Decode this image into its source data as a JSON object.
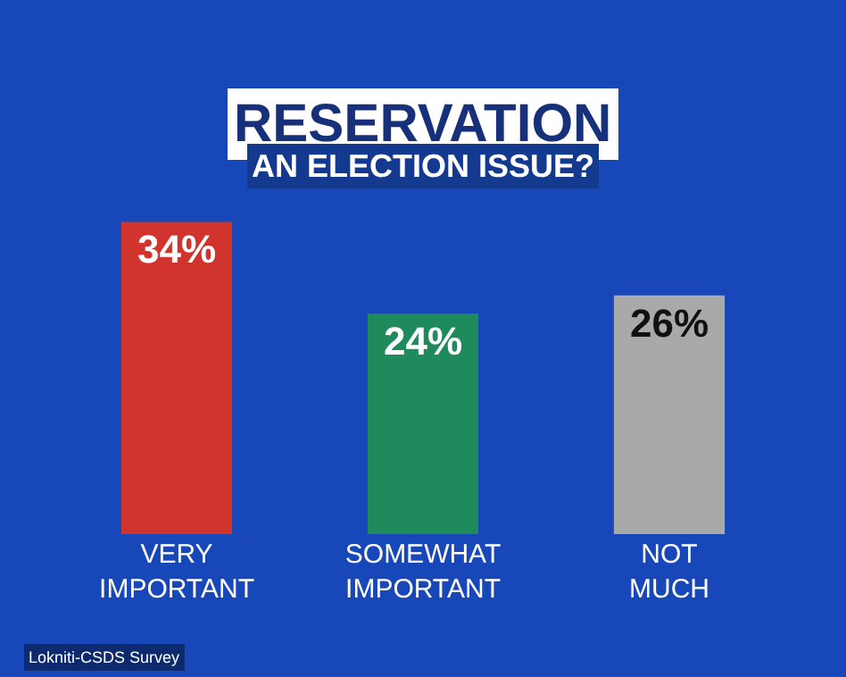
{
  "chart_data": {
    "type": "bar",
    "title": "RESERVATION",
    "subtitle": "AN ELECTION ISSUE?",
    "categories": [
      "VERY IMPORTANT",
      "SOMEWHAT IMPORTANT",
      "NOT MUCH"
    ],
    "values": [
      34,
      24,
      26
    ],
    "colors": [
      "#d0342c",
      "#1f8a5c",
      "#a9a9a9"
    ],
    "value_labels": [
      "34%",
      "24%",
      "26%"
    ],
    "annotations": [
      "Lokniti-CSDS Survey"
    ]
  }
}
